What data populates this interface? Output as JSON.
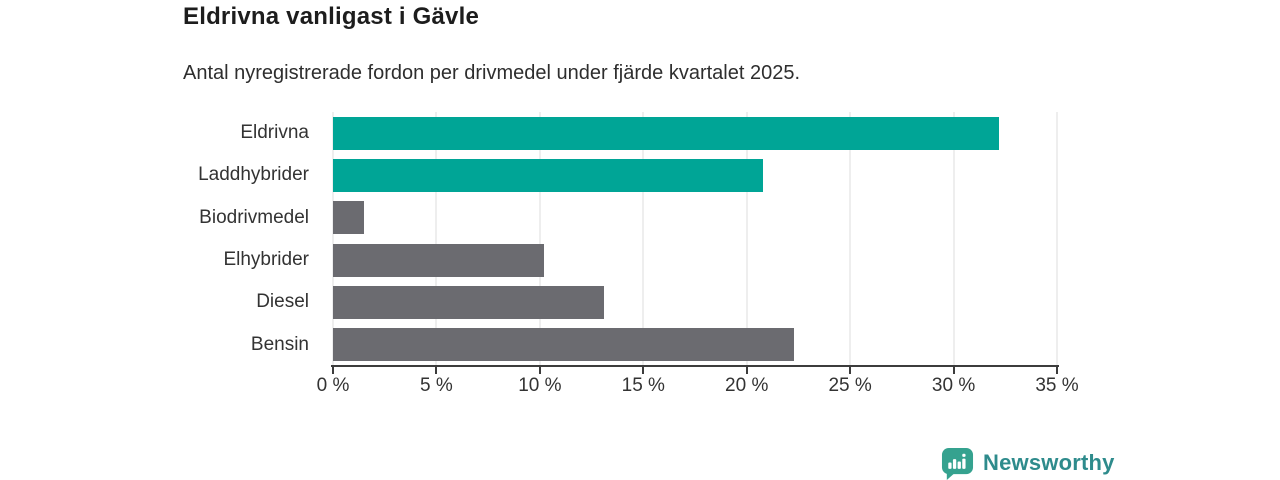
{
  "title": "Eldrivna vanligast i Gävle",
  "subtitle": "Antal nyregistrerade fordon per drivmedel under fjärde kvartalet 2025.",
  "branding": {
    "name": "Newsworthy",
    "icon": "newsworthy-speech-bubble-barchart-icon",
    "icon_color": "#35a28f",
    "text_color": "#2e8b8c"
  },
  "colors": {
    "highlight_bar": "#00a596",
    "default_bar": "#6b6b70",
    "axis": "#3c3c3c",
    "grid": "#dcdcdc",
    "text": "#333333",
    "title_text": "#1d1d1d"
  },
  "chart_data": {
    "type": "bar",
    "orientation": "horizontal",
    "title": "Eldrivna vanligast i Gävle",
    "subtitle": "Antal nyregistrerade fordon per drivmedel under fjärde kvartalet 2025.",
    "categories": [
      "Eldrivna",
      "Laddhybrider",
      "Biodrivmedel",
      "Elhybrider",
      "Diesel",
      "Bensin"
    ],
    "values": [
      32.2,
      20.8,
      1.5,
      10.2,
      13.1,
      22.3
    ],
    "unit": "%",
    "bar_colors": [
      "#00a596",
      "#00a596",
      "#6b6b70",
      "#6b6b70",
      "#6b6b70",
      "#6b6b70"
    ],
    "xlabel": "",
    "ylabel": "",
    "xlim": [
      0,
      35
    ],
    "x_tick_values": [
      0,
      5,
      10,
      15,
      20,
      25,
      30,
      35
    ],
    "x_tick_labels": [
      "0 %",
      "5 %",
      "10 %",
      "15 %",
      "20 %",
      "25 %",
      "30 %",
      "35 %"
    ],
    "grid": "vertical-only",
    "legend": "none"
  }
}
